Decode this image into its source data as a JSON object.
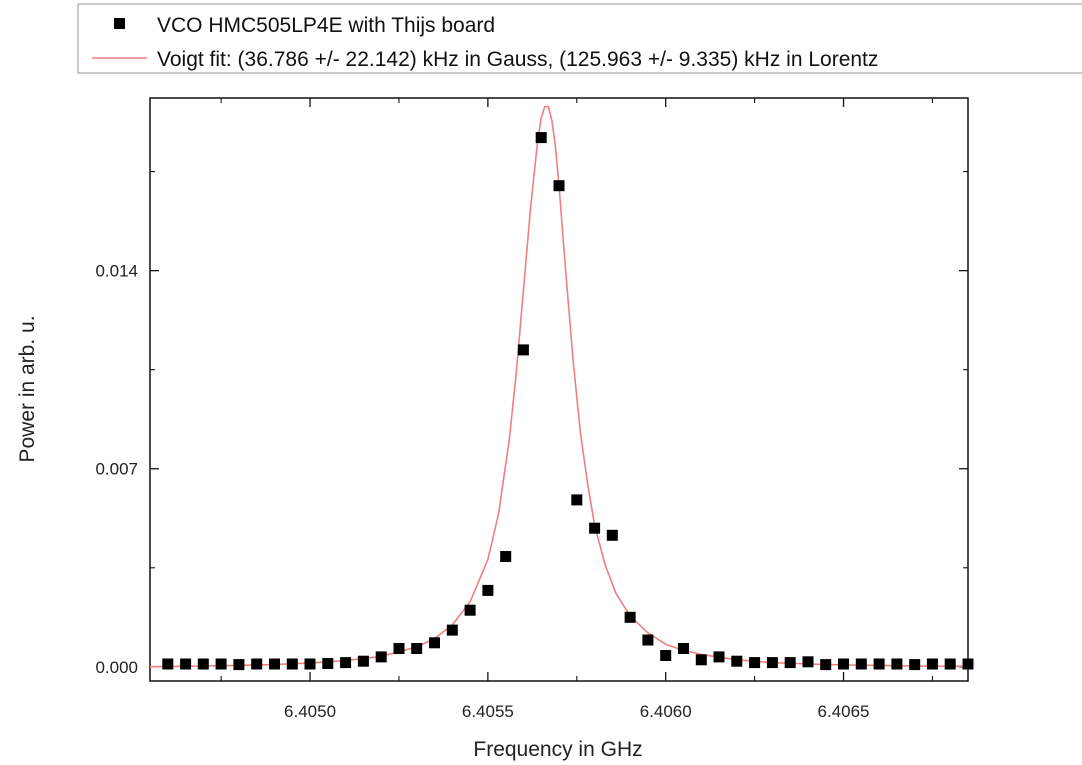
{
  "chart_data": {
    "type": "scatter",
    "xlabel": "Frequency in GHz",
    "ylabel": "Power in arb. u.",
    "xlim": [
      6.40455,
      6.40685
    ],
    "ylim": [
      -0.0005,
      0.0201
    ],
    "xticks": [
      6.405,
      6.4055,
      6.406,
      6.4065
    ],
    "xtick_labels": [
      "6.4050",
      "6.4055",
      "6.4060",
      "6.4065"
    ],
    "yticks": [
      0.0,
      0.007,
      0.014
    ],
    "ytick_labels": [
      "0.000",
      "0.007",
      "0.014"
    ],
    "grid": false,
    "legend_position": "top",
    "series": [
      {
        "name": "VCO HMC505LP4E with Thijs board",
        "kind": "scatter",
        "marker": "square",
        "color": "#000000",
        "x": [
          6.4046,
          6.40465,
          6.4047,
          6.40475,
          6.4048,
          6.40485,
          6.4049,
          6.40495,
          6.405,
          6.40505,
          6.4051,
          6.40515,
          6.4052,
          6.40525,
          6.4053,
          6.40535,
          6.4054,
          6.40545,
          6.4055,
          6.40555,
          6.4056,
          6.40565,
          6.4057,
          6.40575,
          6.4058,
          6.40585,
          6.4059,
          6.40595,
          6.406,
          6.40605,
          6.4061,
          6.40615,
          6.4062,
          6.40625,
          6.4063,
          6.40635,
          6.4064,
          6.40645,
          6.4065,
          6.40655,
          6.4066,
          6.40665,
          6.4067,
          6.40675,
          6.4068,
          6.40685
        ],
        "y": [
          0.0001,
          0.0001,
          0.0001,
          0.0001,
          8e-05,
          0.0001,
          0.0001,
          0.0001,
          0.0001,
          0.00012,
          0.00015,
          0.0002,
          0.00035,
          0.00065,
          0.00065,
          0.00085,
          0.0013,
          0.002,
          0.0027,
          0.0039,
          0.0112,
          0.0187,
          0.017,
          0.0059,
          0.0049,
          0.00465,
          0.00175,
          0.00095,
          0.0004,
          0.00065,
          0.00025,
          0.00035,
          0.0002,
          0.00015,
          0.00015,
          0.00015,
          0.00018,
          8e-05,
          0.0001,
          0.0001,
          0.0001,
          0.0001,
          8e-05,
          0.0001,
          0.0001,
          0.0001
        ]
      },
      {
        "name": "Voigt fit: (36.786 +/- 22.142) kHz in Gauss, (125.963 +/- 9.335) kHz in Lorentz",
        "kind": "line",
        "color": "#f08080",
        "x": [
          6.40455,
          6.4047,
          6.4048,
          6.4049,
          6.405,
          6.4051,
          6.4052,
          6.4053,
          6.40535,
          6.4054,
          6.40545,
          6.4055,
          6.40553,
          6.40556,
          6.40558,
          6.4056,
          6.40562,
          6.40564,
          6.40565,
          6.40566,
          6.40567,
          6.40568,
          6.40569,
          6.4057,
          6.40572,
          6.40574,
          6.40576,
          6.40578,
          6.4058,
          6.40583,
          6.40586,
          6.4059,
          6.40595,
          6.406,
          6.40605,
          6.4061,
          6.4062,
          6.4063,
          6.4064,
          6.4065,
          6.4066,
          6.4067,
          6.40685
        ],
        "y": [
          0.0,
          3e-05,
          5e-05,
          8e-05,
          0.00014,
          0.00022,
          0.00037,
          0.0007,
          0.001,
          0.00148,
          0.0023,
          0.0038,
          0.0054,
          0.008,
          0.0104,
          0.0133,
          0.0162,
          0.0186,
          0.0194,
          0.0198,
          0.0198,
          0.0193,
          0.0184,
          0.017,
          0.0138,
          0.0108,
          0.0083,
          0.0065,
          0.005,
          0.0036,
          0.0026,
          0.0018,
          0.0012,
          0.0008,
          0.00058,
          0.00044,
          0.00025,
          0.00015,
          0.0001,
          7e-05,
          5e-05,
          3e-05,
          2e-05
        ]
      }
    ]
  }
}
